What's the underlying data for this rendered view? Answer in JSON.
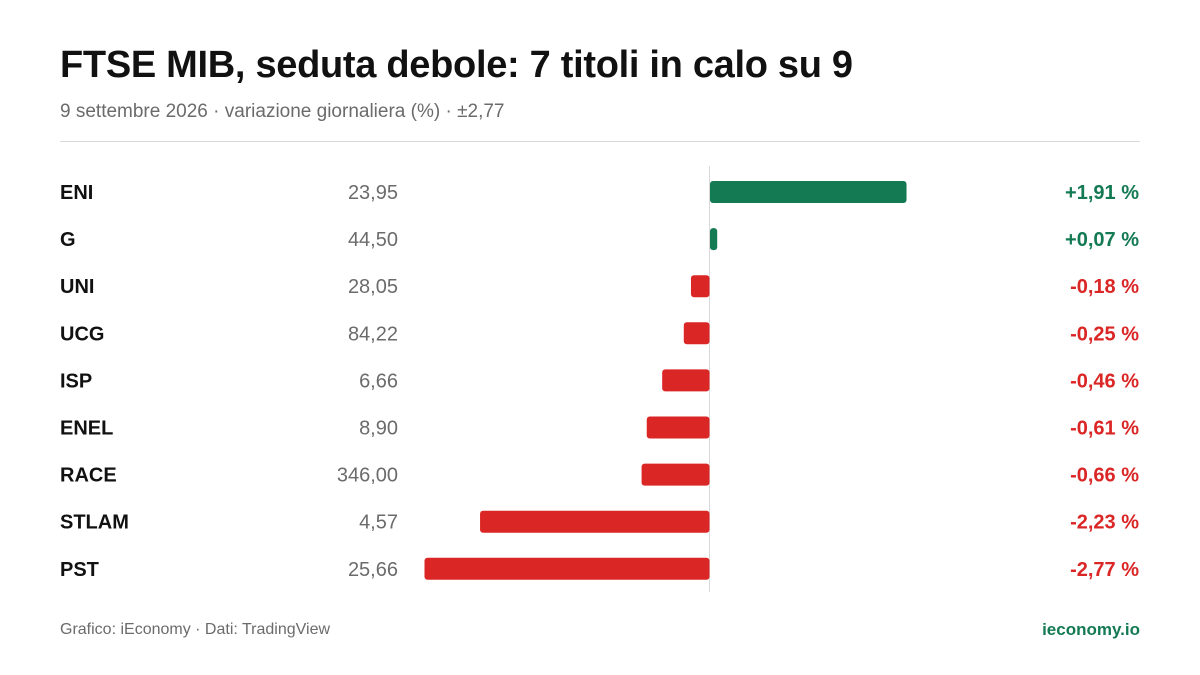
{
  "header": {
    "title": "FTSE MIB, seduta debole: 7 titoli in calo su 9",
    "subtitle": "9 settembre 2026 · variazione giornaliera (%) · ±2,77"
  },
  "footer": {
    "source": "Grafico: iEconomy · Dati: TradingView",
    "brand": "ieconomy.io"
  },
  "colors": {
    "positive": "#137a54",
    "negative": "#db2626",
    "axis": "#d9d9d9",
    "ticker": "#111111",
    "price": "#6b6b6b"
  },
  "chart_data": {
    "type": "bar",
    "orientation": "horizontal",
    "xlim": [
      -2.77,
      2.77
    ],
    "categories": [
      "ENI",
      "G",
      "UNI",
      "UCG",
      "ISP",
      "ENEL",
      "RACE",
      "STLAM",
      "PST"
    ],
    "prices": [
      "23,95",
      "44,50",
      "28,05",
      "84,22",
      "6,66",
      "8,90",
      "346,00",
      "4,57",
      "25,66"
    ],
    "values": [
      1.91,
      0.07,
      -0.18,
      -0.25,
      -0.46,
      -0.61,
      -0.66,
      -2.23,
      -2.77
    ],
    "value_labels": [
      "+1,91 %",
      "+0,07 %",
      "-0,18 %",
      "-0,25 %",
      "-0,46 %",
      "-0,61 %",
      "-0,66 %",
      "-2,23 %",
      "-2,77 %"
    ]
  }
}
